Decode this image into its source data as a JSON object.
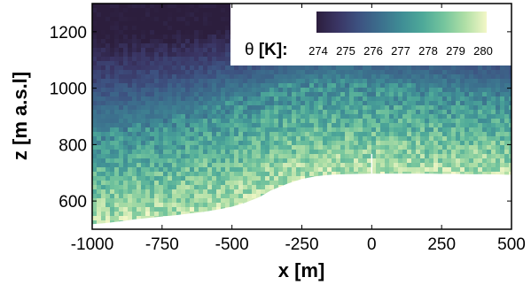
{
  "chart_data": {
    "type": "heatmap",
    "title": "",
    "xlabel": "x [m]",
    "ylabel": "z [m a.s.l]",
    "xlim": [
      -1000,
      500
    ],
    "ylim": [
      500,
      1300
    ],
    "x_ticks": [
      -1000,
      -750,
      -500,
      -250,
      0,
      250,
      500
    ],
    "y_ticks": [
      600,
      800,
      1000,
      1200
    ],
    "colorbar": {
      "title_symbol": "θ",
      "title_unit": "[K]:",
      "min": 274,
      "max": 280,
      "ticks": [
        274,
        275,
        276,
        277,
        278,
        279,
        280
      ],
      "colors": [
        "#2c1e3d",
        "#3a3564",
        "#3d5281",
        "#3c6f8d",
        "#3f8d95",
        "#4ea999",
        "#75c59d",
        "#b0dfa6",
        "#f3f7c7"
      ],
      "placement": "top-right"
    },
    "terrain_profile": {
      "x": [
        -1000,
        -950,
        -900,
        -850,
        -800,
        -750,
        -700,
        -650,
        -600,
        -550,
        -500,
        -450,
        -400,
        -360,
        -330,
        -300,
        -250,
        -200,
        -150,
        -100,
        -50,
        0,
        50,
        100,
        150,
        200,
        250,
        300,
        350,
        400,
        450,
        500
      ],
      "z": [
        518,
        522,
        528,
        535,
        540,
        545,
        550,
        556,
        562,
        570,
        580,
        595,
        615,
        638,
        650,
        662,
        678,
        688,
        693,
        695,
        696,
        697,
        697,
        697,
        697,
        697,
        696,
        696,
        695,
        695,
        694,
        693
      ]
    },
    "temperature_field": {
      "description_units": "K",
      "surface_theta": 279.3,
      "top_theta": 273.9,
      "mixed_layer_top_z": [
        840,
        850,
        860,
        870,
        880,
        890,
        900,
        910,
        930,
        950,
        960,
        970,
        985,
        1000,
        1010,
        1015,
        1020,
        1030,
        1035,
        1035,
        1030,
        1025,
        1020,
        1015,
        1010,
        1005,
        1000,
        995,
        990,
        985,
        980,
        975
      ]
    }
  }
}
